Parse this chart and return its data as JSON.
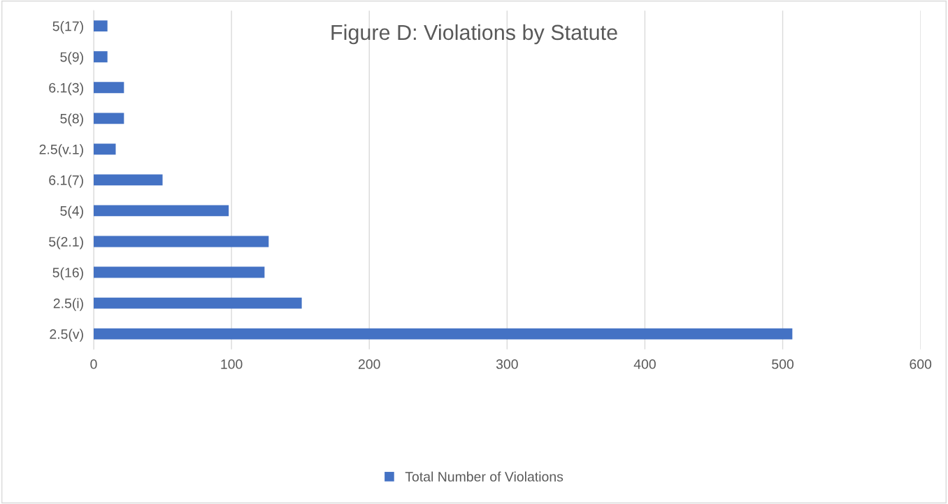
{
  "chart_data": {
    "type": "bar",
    "orientation": "horizontal",
    "title": "Figure D: Violations by Statute",
    "categories": [
      "5(17)",
      "5(9)",
      "6.1(3)",
      "5(8)",
      "2.5(v.1)",
      "6.1(7)",
      "5(4)",
      "5(2.1)",
      "5(16)",
      "2.5(i)",
      "2.5(v)"
    ],
    "series": [
      {
        "name": "Total Number of Violations",
        "color": "#4472c4",
        "values": [
          10,
          10,
          22,
          22,
          16,
          50,
          98,
          127,
          124,
          151,
          507
        ]
      }
    ],
    "xlim": [
      0,
      600
    ],
    "xticks": [
      0,
      100,
      200,
      300,
      400,
      500,
      600
    ],
    "grid": "x",
    "legend": "bottom"
  }
}
